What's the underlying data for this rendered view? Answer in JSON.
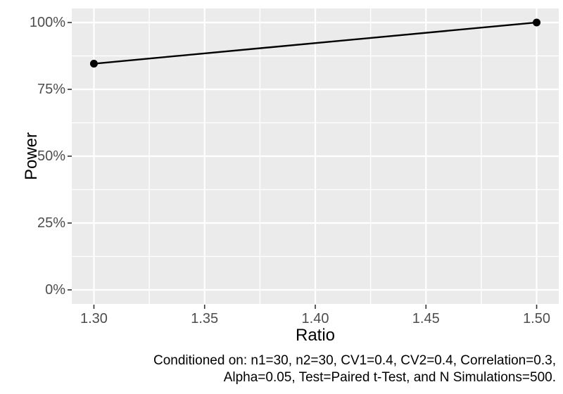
{
  "chart_data": {
    "type": "line",
    "title": "",
    "xlabel": "Ratio",
    "ylabel": "Power",
    "series": [
      {
        "name": "Power",
        "x": [
          1.3,
          1.5
        ],
        "y_percent": [
          84.6,
          100
        ]
      }
    ],
    "x_tick_values": [
      1.3,
      1.35,
      1.4,
      1.45,
      1.5
    ],
    "x_tick_labels": [
      "1.30",
      "1.35",
      "1.40",
      "1.45",
      "1.50"
    ],
    "x_minor_values": [
      1.325,
      1.375,
      1.425,
      1.475
    ],
    "y_tick_values": [
      0,
      25,
      50,
      75,
      100
    ],
    "y_tick_labels": [
      "0%",
      "25%",
      "50%",
      "75%",
      "100%"
    ],
    "y_minor_values": [
      12.5,
      37.5,
      62.5,
      87.5
    ],
    "xlim": [
      1.29,
      1.51
    ],
    "ylim_percent": [
      -5.26,
      105.26
    ],
    "grid": "on",
    "legend": "none",
    "caption_lines": [
      "Conditioned on: n1=30, n2=30, CV1=0.4, CV2=0.4, Correlation=0.3,",
      "Alpha=0.05, Test=Paired t-Test, and N Simulations=500."
    ],
    "colors": {
      "panel_background": "#EBEBEB",
      "grid_major": "#FFFFFF",
      "grid_minor": "#FFFFFF",
      "line": "#000000",
      "point": "#000000",
      "axis_text": "#4D4D4D",
      "axis_title": "#000000",
      "tick_mark": "#333333",
      "caption_text": "#000000",
      "figure_background": "#FFFFFF"
    }
  }
}
